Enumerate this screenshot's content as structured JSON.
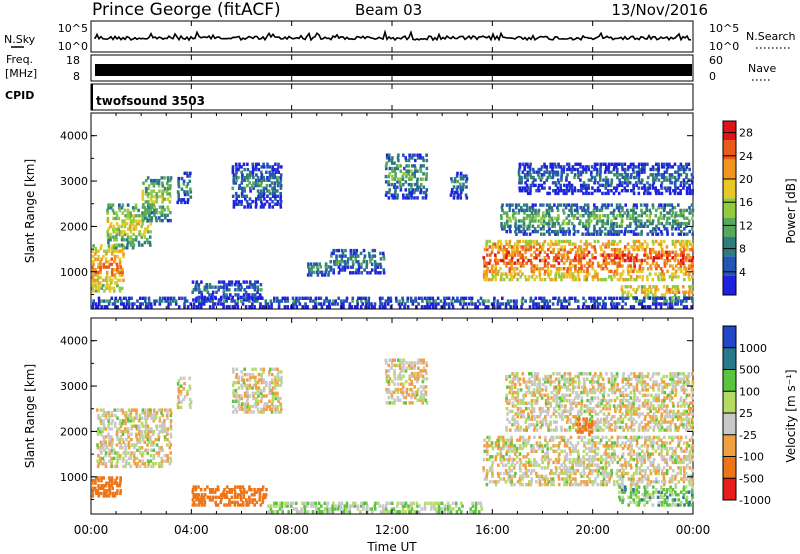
{
  "header": {
    "station": "Prince George (fitACF)",
    "beam": "Beam 03",
    "date": "13/Nov/2016"
  },
  "noise_panel": {
    "left_label": "N.Sky",
    "right_label": "N.Search",
    "left_ticks": [
      "10^5",
      "10^0"
    ],
    "right_ticks": [
      "10^5",
      "10^0"
    ]
  },
  "freq_panel": {
    "left_label_1": "Freq.",
    "left_label_2": "[MHz]",
    "right_label": "Nave",
    "left_ticks": [
      "18",
      "8"
    ],
    "right_ticks": [
      "60",
      "0"
    ]
  },
  "cpid_panel": {
    "label": "CPID",
    "program": "twofsound 3503"
  },
  "time_axis": {
    "label": "Time UT",
    "ticks": [
      "00:00",
      "04:00",
      "08:00",
      "12:00",
      "16:00",
      "20:00",
      "00:00"
    ]
  },
  "chart_data": [
    {
      "type": "heatmap",
      "name": "power",
      "ylabel": "Slant Range [km]",
      "ylim": [
        180,
        4500
      ],
      "yticks": [
        "1000",
        "2000",
        "3000",
        "4000"
      ],
      "colorbar_label": "Power [dB]",
      "colorbar_ticks": [
        "4",
        "8",
        "12",
        "16",
        "20",
        "24",
        "28"
      ],
      "colorbar_range": [
        0,
        30
      ],
      "colors": [
        "#1e22e0",
        "#2454b4",
        "#2f7d7a",
        "#55a85c",
        "#92cc3c",
        "#e8c826",
        "#f2941e",
        "#ec5a1a",
        "#e01414"
      ],
      "regions": [
        {
          "t0": 0.0,
          "t1": 1.3,
          "r0": 550,
          "r1": 1600,
          "p": 24
        },
        {
          "t0": 0.6,
          "t1": 2.4,
          "r0": 1500,
          "r1": 2500,
          "p": 18
        },
        {
          "t0": 2.0,
          "t1": 3.2,
          "r0": 2100,
          "r1": 3100,
          "p": 16
        },
        {
          "t0": 3.4,
          "t1": 4.0,
          "r0": 2500,
          "r1": 3200,
          "p": 10
        },
        {
          "t0": 5.6,
          "t1": 7.6,
          "r0": 2400,
          "r1": 3400,
          "p": 9
        },
        {
          "t0": 4.0,
          "t1": 6.8,
          "r0": 350,
          "r1": 800,
          "p": 8
        },
        {
          "t0": 8.6,
          "t1": 9.5,
          "r0": 900,
          "r1": 1200,
          "p": 12
        },
        {
          "t0": 9.5,
          "t1": 11.7,
          "r0": 950,
          "r1": 1500,
          "p": 10
        },
        {
          "t0": 11.7,
          "t1": 13.4,
          "r0": 2600,
          "r1": 3600,
          "p": 12
        },
        {
          "t0": 14.3,
          "t1": 15.0,
          "r0": 2600,
          "r1": 3200,
          "p": 10
        },
        {
          "t0": 15.6,
          "t1": 24.0,
          "r0": 800,
          "r1": 1700,
          "p": 26
        },
        {
          "t0": 16.3,
          "t1": 24.0,
          "r0": 1800,
          "r1": 2500,
          "p": 13
        },
        {
          "t0": 17.0,
          "t1": 24.0,
          "r0": 2700,
          "r1": 3400,
          "p": 8
        },
        {
          "t0": 21.0,
          "t1": 24.0,
          "r0": 400,
          "r1": 700,
          "p": 22
        },
        {
          "t0": 0.0,
          "t1": 24.0,
          "r0": 200,
          "r1": 450,
          "p": 7
        }
      ]
    },
    {
      "type": "heatmap",
      "name": "velocity",
      "ylabel": "Slant Range [km]",
      "ylim": [
        180,
        4500
      ],
      "yticks": [
        "1000",
        "2000",
        "3000",
        "4000"
      ],
      "colorbar_label": "Velocity [m s⁻¹]",
      "colorbar_ticks": [
        "1000",
        "500",
        "100",
        "25",
        "-25",
        "-100",
        "-500",
        "-1000"
      ],
      "colors": [
        "#2346c8",
        "#277a8c",
        "#5ac43e",
        "#b4dc64",
        "#c8c8c8",
        "#f0a040",
        "#ee7418",
        "#e81e1e"
      ],
      "regions": [
        {
          "t0": 0.0,
          "t1": 1.2,
          "r0": 550,
          "r1": 1000,
          "v": -400
        },
        {
          "t0": 0.2,
          "t1": 3.2,
          "r0": 1200,
          "r1": 2500,
          "v": 0
        },
        {
          "t0": 4.0,
          "t1": 7.0,
          "r0": 350,
          "r1": 800,
          "v": -250
        },
        {
          "t0": 5.6,
          "t1": 7.6,
          "r0": 2400,
          "r1": 3400,
          "v": 0
        },
        {
          "t0": 3.4,
          "t1": 4.0,
          "r0": 2500,
          "r1": 3200,
          "v": 0
        },
        {
          "t0": 11.7,
          "t1": 13.4,
          "r0": 2600,
          "r1": 3600,
          "v": 0
        },
        {
          "t0": 15.6,
          "t1": 24.0,
          "r0": 800,
          "r1": 1900,
          "v": 0
        },
        {
          "t0": 16.5,
          "t1": 24.0,
          "r0": 2000,
          "r1": 3300,
          "v": 0
        },
        {
          "t0": 19.3,
          "t1": 20.0,
          "r0": 1900,
          "r1": 2300,
          "v": -400
        },
        {
          "t0": 21.0,
          "t1": 24.0,
          "r0": 350,
          "r1": 800,
          "v": 60
        },
        {
          "t0": 7.0,
          "t1": 15.6,
          "r0": 200,
          "r1": 450,
          "v": 40
        }
      ]
    }
  ]
}
